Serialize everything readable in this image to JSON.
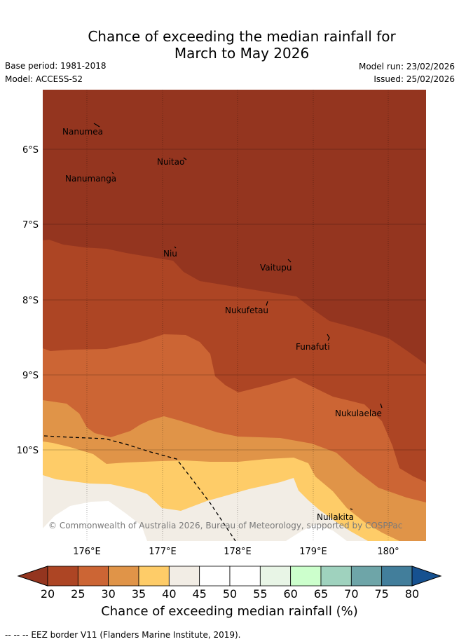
{
  "title": {
    "line1": "Chance of exceeding the median rainfall for",
    "line2": "March to May 2026"
  },
  "meta": {
    "base_period": "Base period: 1981-2018",
    "model": "Model: ACCESS-S2",
    "model_run": "Model run: 23/02/2026",
    "issued": "Issued: 25/02/2026"
  },
  "map": {
    "copyright": "© Commonwealth of Australia 2026, Bureau of Meteorology, supported by COSPPac",
    "lon_labels": [
      "176°E",
      "177°E",
      "178°E",
      "179°E",
      "180°"
    ],
    "lat_labels": [
      "6°S",
      "7°S",
      "8°S",
      "9°S",
      "10°S"
    ],
    "islands": [
      "Nanumea",
      "Nuitao",
      "Nanumanga",
      "Niu",
      "Vaitupu",
      "Nukufetau",
      "Funafuti",
      "Nukulaelae",
      "Nuilakita"
    ]
  },
  "colorbar": {
    "ticks": [
      "20",
      "25",
      "30",
      "35",
      "40",
      "45",
      "50",
      "55",
      "60",
      "65",
      "70",
      "75",
      "80"
    ],
    "colors": [
      "#ad4524",
      "#cc6534",
      "#e09448",
      "#fecc68",
      "#f2ede5",
      "#ffffff",
      "#ffffff",
      "#e8f5e6",
      "#ccffcc",
      "#9fd2be",
      "#6ea5a8",
      "#427e9b"
    ],
    "under_color": "#94351f",
    "over_color": "#165190",
    "label": "Chance of exceeding median rainfall (%)"
  },
  "footer": "-- -- -- EEZ border V11 (Flanders Marine Institute, 2019)."
}
